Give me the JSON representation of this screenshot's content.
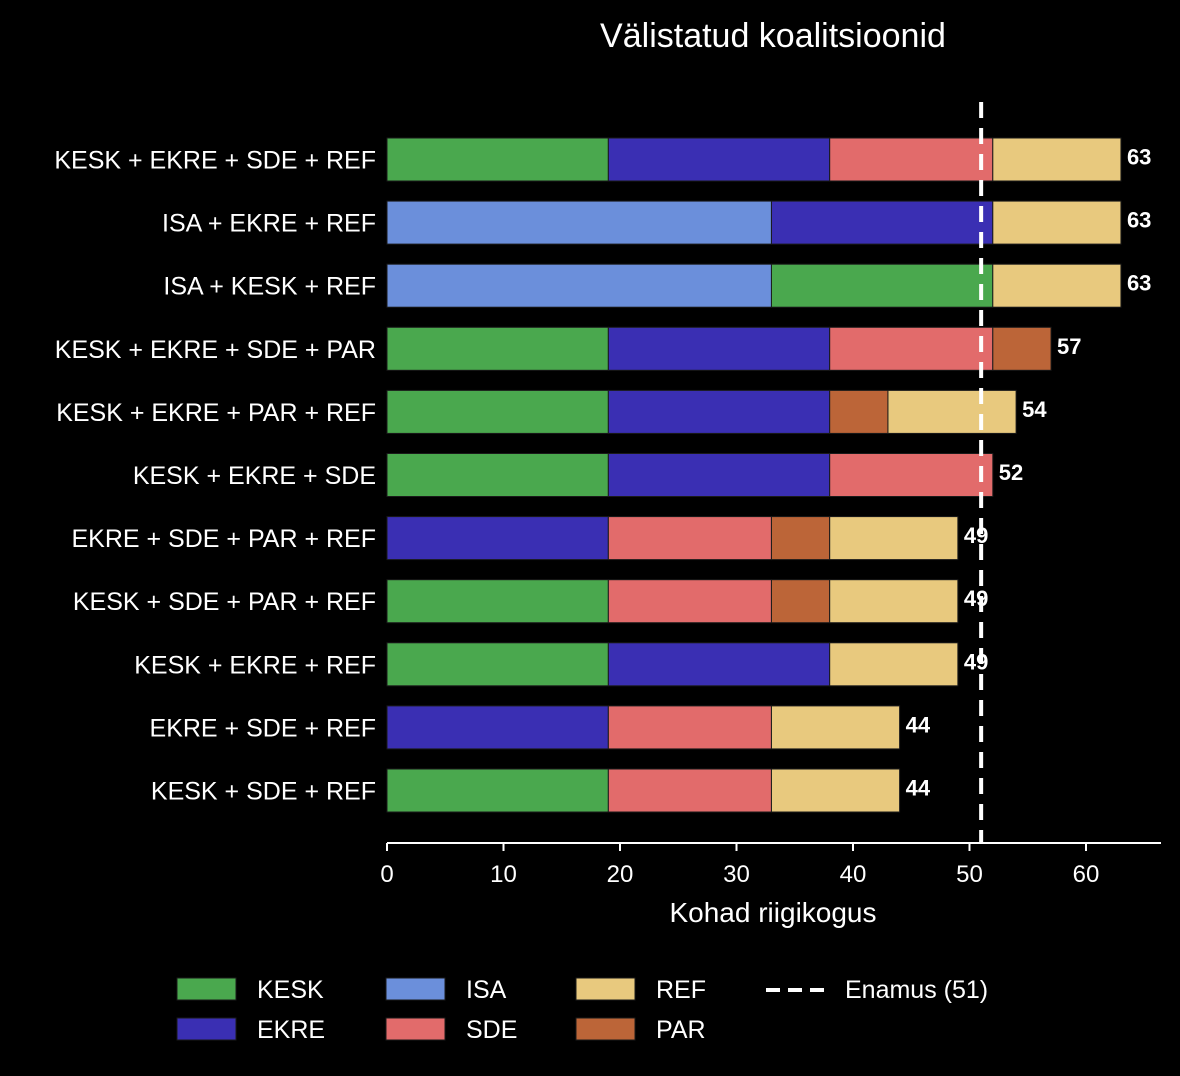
{
  "chart_data": {
    "type": "bar",
    "orientation": "horizontal",
    "stacked": true,
    "title": "Välistatud koalitsioonid",
    "xlabel": "Kohad riigikogus",
    "ylabel": "",
    "xlim": [
      0,
      66
    ],
    "xticks": [
      "0",
      "10",
      "20",
      "30",
      "40",
      "50",
      "60"
    ],
    "majority": {
      "value": 51,
      "label": "Enamus (51)",
      "color": "#ffffff"
    },
    "parties": [
      {
        "name": "KESK",
        "color": "#4aa84e"
      },
      {
        "name": "EKRE",
        "color": "#3a2fb3"
      },
      {
        "name": "ISA",
        "color": "#6b8fdb"
      },
      {
        "name": "SDE",
        "color": "#e26b6b"
      },
      {
        "name": "REF",
        "color": "#e8c97e"
      },
      {
        "name": "PAR",
        "color": "#bc6538"
      }
    ],
    "legend_order": [
      "KESK",
      "EKRE",
      "ISA",
      "SDE",
      "REF",
      "PAR"
    ],
    "rows": [
      {
        "label": "KESK + EKRE + SDE + REF",
        "total": "63",
        "segments": [
          {
            "party": "KESK",
            "value": 19
          },
          {
            "party": "EKRE",
            "value": 19
          },
          {
            "party": "SDE",
            "value": 14
          },
          {
            "party": "REF",
            "value": 11
          }
        ]
      },
      {
        "label": "ISA + EKRE + REF",
        "total": "63",
        "segments": [
          {
            "party": "ISA",
            "value": 33
          },
          {
            "party": "EKRE",
            "value": 19
          },
          {
            "party": "REF",
            "value": 11
          }
        ]
      },
      {
        "label": "ISA + KESK + REF",
        "total": "63",
        "segments": [
          {
            "party": "ISA",
            "value": 33
          },
          {
            "party": "KESK",
            "value": 19
          },
          {
            "party": "REF",
            "value": 11
          }
        ]
      },
      {
        "label": "KESK + EKRE + SDE + PAR",
        "total": "57",
        "segments": [
          {
            "party": "KESK",
            "value": 19
          },
          {
            "party": "EKRE",
            "value": 19
          },
          {
            "party": "SDE",
            "value": 14
          },
          {
            "party": "PAR",
            "value": 5
          }
        ]
      },
      {
        "label": "KESK + EKRE + PAR + REF",
        "total": "54",
        "segments": [
          {
            "party": "KESK",
            "value": 19
          },
          {
            "party": "EKRE",
            "value": 19
          },
          {
            "party": "PAR",
            "value": 5
          },
          {
            "party": "REF",
            "value": 11
          }
        ]
      },
      {
        "label": "KESK + EKRE + SDE",
        "total": "52",
        "segments": [
          {
            "party": "KESK",
            "value": 19
          },
          {
            "party": "EKRE",
            "value": 19
          },
          {
            "party": "SDE",
            "value": 14
          }
        ]
      },
      {
        "label": "EKRE + SDE + PAR + REF",
        "total": "49",
        "segments": [
          {
            "party": "EKRE",
            "value": 19
          },
          {
            "party": "SDE",
            "value": 14
          },
          {
            "party": "PAR",
            "value": 5
          },
          {
            "party": "REF",
            "value": 11
          }
        ]
      },
      {
        "label": "KESK + SDE + PAR + REF",
        "total": "49",
        "segments": [
          {
            "party": "KESK",
            "value": 19
          },
          {
            "party": "SDE",
            "value": 14
          },
          {
            "party": "PAR",
            "value": 5
          },
          {
            "party": "REF",
            "value": 11
          }
        ]
      },
      {
        "label": "KESK + EKRE + REF",
        "total": "49",
        "segments": [
          {
            "party": "KESK",
            "value": 19
          },
          {
            "party": "EKRE",
            "value": 19
          },
          {
            "party": "REF",
            "value": 11
          }
        ]
      },
      {
        "label": "EKRE + SDE + REF",
        "total": "44",
        "segments": [
          {
            "party": "EKRE",
            "value": 19
          },
          {
            "party": "SDE",
            "value": 14
          },
          {
            "party": "REF",
            "value": 11
          }
        ]
      },
      {
        "label": "KESK + SDE + REF",
        "total": "44",
        "segments": [
          {
            "party": "KESK",
            "value": 19
          },
          {
            "party": "SDE",
            "value": 14
          },
          {
            "party": "REF",
            "value": 11
          }
        ]
      }
    ]
  }
}
